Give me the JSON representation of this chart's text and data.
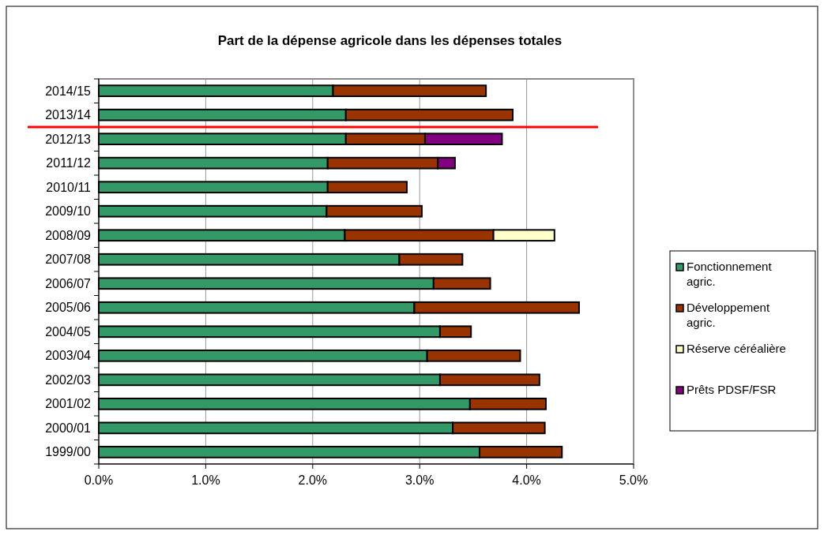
{
  "chart_data": {
    "type": "bar",
    "orientation": "horizontal",
    "stacked": true,
    "title": "Part de la dépense agricole dans les dépenses totales",
    "categories": [
      "2014/15",
      "2013/14",
      "2012/13",
      "2011/12",
      "2010/11",
      "2009/10",
      "2008/09",
      "2007/08",
      "2006/07",
      "2005/06",
      "2004/05",
      "2003/04",
      "2002/03",
      "2001/02",
      "2000/01",
      "1999/00"
    ],
    "series": [
      {
        "name": "Fonctionnement agric.",
        "color": "#339966",
        "values": [
          2.19,
          2.31,
          2.31,
          2.14,
          2.14,
          2.13,
          2.3,
          2.81,
          3.13,
          2.95,
          3.19,
          3.07,
          3.19,
          3.47,
          3.31,
          3.56
        ]
      },
      {
        "name": "Développement agric.",
        "color": "#993300",
        "values": [
          1.43,
          1.56,
          0.74,
          1.03,
          0.74,
          0.89,
          1.39,
          0.59,
          0.53,
          1.54,
          0.29,
          0.87,
          0.93,
          0.71,
          0.86,
          0.77
        ]
      },
      {
        "name": "Réserve céréalière",
        "color": "#ffffcc",
        "values": [
          null,
          null,
          null,
          null,
          null,
          null,
          0.57,
          null,
          null,
          null,
          null,
          null,
          null,
          null,
          null,
          null
        ]
      },
      {
        "name": "Prêts PDSF/FSR",
        "color": "#800080",
        "values": [
          null,
          null,
          0.72,
          0.16,
          null,
          null,
          null,
          null,
          null,
          null,
          null,
          null,
          null,
          null,
          null,
          null
        ]
      }
    ],
    "xlim": [
      0,
      5
    ],
    "xticks": [
      {
        "value": 0,
        "label": "0.0%"
      },
      {
        "value": 1,
        "label": "1.0%"
      },
      {
        "value": 2,
        "label": "2.0%"
      },
      {
        "value": 3,
        "label": "3.0%"
      },
      {
        "value": 4,
        "label": "4.0%"
      },
      {
        "value": 5,
        "label": "5.0%"
      }
    ],
    "grid": "x",
    "legend": "right",
    "ref_lines": [
      {
        "axis": "y",
        "value": "2013/14",
        "color": "#ff0000"
      }
    ]
  }
}
